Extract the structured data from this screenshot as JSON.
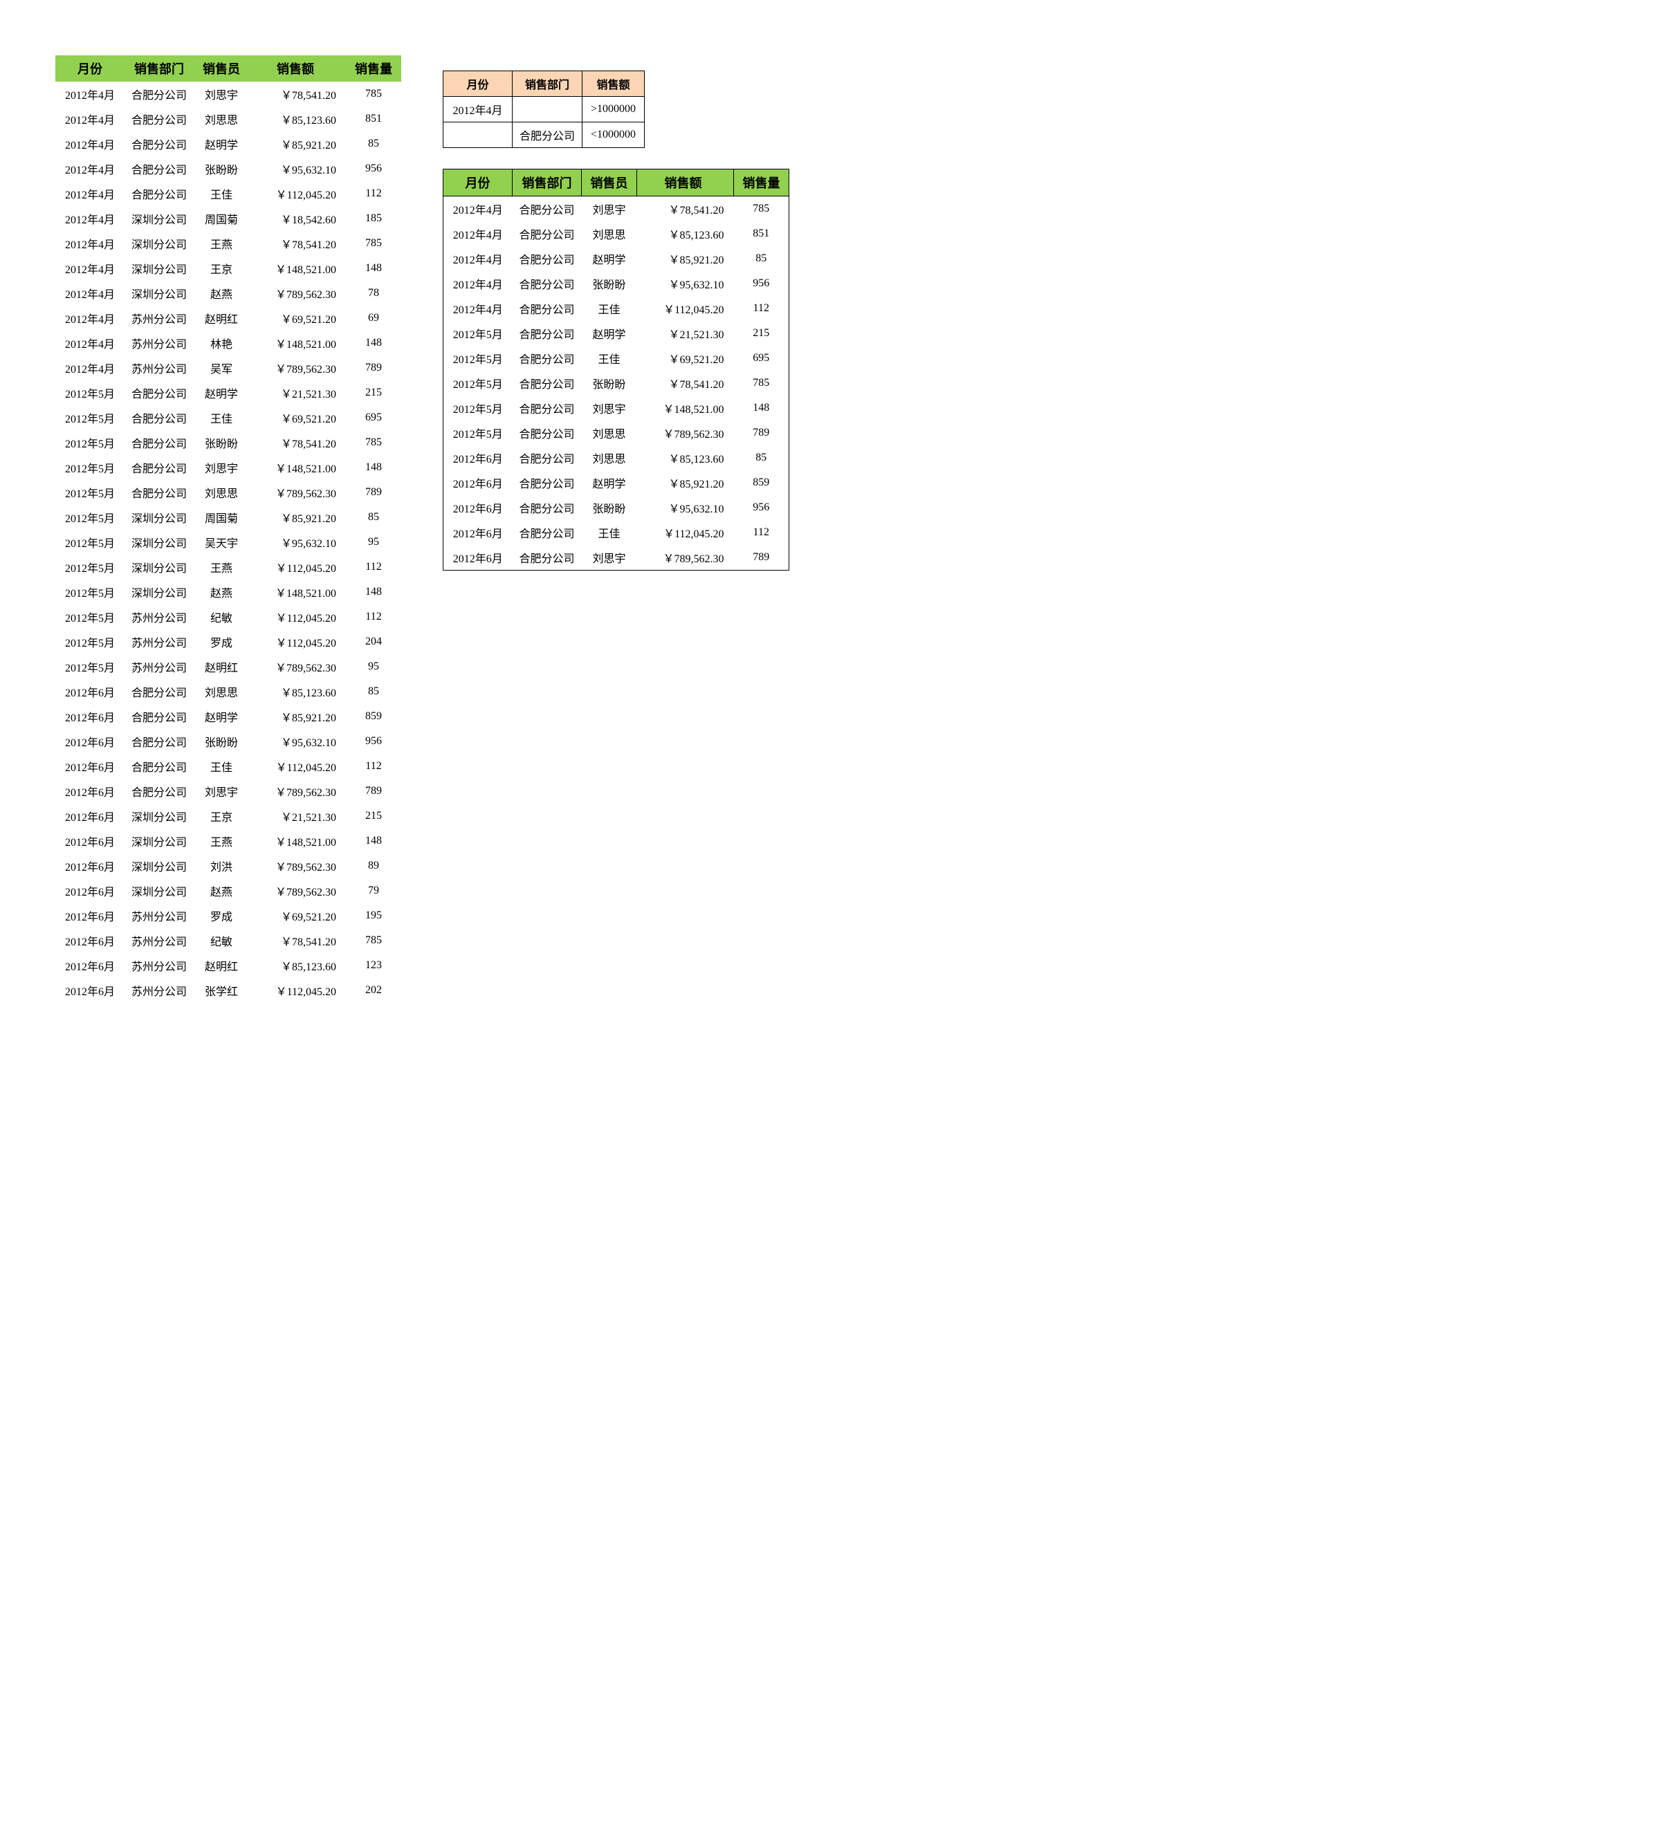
{
  "colors": {
    "header_green": "#92d050",
    "header_peach": "#fcd5b4",
    "border": "#000000",
    "bg": "#ffffff",
    "text": "#000000"
  },
  "main_table": {
    "headers": [
      "月份",
      "销售部门",
      "销售员",
      "销售额",
      "销售量"
    ],
    "rows": [
      [
        "2012年4月",
        "合肥分公司",
        "刘思宇",
        "￥78,541.20",
        "785"
      ],
      [
        "2012年4月",
        "合肥分公司",
        "刘思思",
        "￥85,123.60",
        "851"
      ],
      [
        "2012年4月",
        "合肥分公司",
        "赵明学",
        "￥85,921.20",
        "85"
      ],
      [
        "2012年4月",
        "合肥分公司",
        "张盼盼",
        "￥95,632.10",
        "956"
      ],
      [
        "2012年4月",
        "合肥分公司",
        "王佳",
        "￥112,045.20",
        "112"
      ],
      [
        "2012年4月",
        "深圳分公司",
        "周国菊",
        "￥18,542.60",
        "185"
      ],
      [
        "2012年4月",
        "深圳分公司",
        "王燕",
        "￥78,541.20",
        "785"
      ],
      [
        "2012年4月",
        "深圳分公司",
        "王京",
        "￥148,521.00",
        "148"
      ],
      [
        "2012年4月",
        "深圳分公司",
        "赵燕",
        "￥789,562.30",
        "78"
      ],
      [
        "2012年4月",
        "苏州分公司",
        "赵明红",
        "￥69,521.20",
        "69"
      ],
      [
        "2012年4月",
        "苏州分公司",
        "林艳",
        "￥148,521.00",
        "148"
      ],
      [
        "2012年4月",
        "苏州分公司",
        "吴军",
        "￥789,562.30",
        "789"
      ],
      [
        "2012年5月",
        "合肥分公司",
        "赵明学",
        "￥21,521.30",
        "215"
      ],
      [
        "2012年5月",
        "合肥分公司",
        "王佳",
        "￥69,521.20",
        "695"
      ],
      [
        "2012年5月",
        "合肥分公司",
        "张盼盼",
        "￥78,541.20",
        "785"
      ],
      [
        "2012年5月",
        "合肥分公司",
        "刘思宇",
        "￥148,521.00",
        "148"
      ],
      [
        "2012年5月",
        "合肥分公司",
        "刘思思",
        "￥789,562.30",
        "789"
      ],
      [
        "2012年5月",
        "深圳分公司",
        "周国菊",
        "￥85,921.20",
        "85"
      ],
      [
        "2012年5月",
        "深圳分公司",
        "吴天宇",
        "￥95,632.10",
        "95"
      ],
      [
        "2012年5月",
        "深圳分公司",
        "王燕",
        "￥112,045.20",
        "112"
      ],
      [
        "2012年5月",
        "深圳分公司",
        "赵燕",
        "￥148,521.00",
        "148"
      ],
      [
        "2012年5月",
        "苏州分公司",
        "纪敏",
        "￥112,045.20",
        "112"
      ],
      [
        "2012年5月",
        "苏州分公司",
        "罗成",
        "￥112,045.20",
        "204"
      ],
      [
        "2012年5月",
        "苏州分公司",
        "赵明红",
        "￥789,562.30",
        "95"
      ],
      [
        "2012年6月",
        "合肥分公司",
        "刘思思",
        "￥85,123.60",
        "85"
      ],
      [
        "2012年6月",
        "合肥分公司",
        "赵明学",
        "￥85,921.20",
        "859"
      ],
      [
        "2012年6月",
        "合肥分公司",
        "张盼盼",
        "￥95,632.10",
        "956"
      ],
      [
        "2012年6月",
        "合肥分公司",
        "王佳",
        "￥112,045.20",
        "112"
      ],
      [
        "2012年6月",
        "合肥分公司",
        "刘思宇",
        "￥789,562.30",
        "789"
      ],
      [
        "2012年6月",
        "深圳分公司",
        "王京",
        "￥21,521.30",
        "215"
      ],
      [
        "2012年6月",
        "深圳分公司",
        "王燕",
        "￥148,521.00",
        "148"
      ],
      [
        "2012年6月",
        "深圳分公司",
        "刘洪",
        "￥789,562.30",
        "89"
      ],
      [
        "2012年6月",
        "深圳分公司",
        "赵燕",
        "￥789,562.30",
        "79"
      ],
      [
        "2012年6月",
        "苏州分公司",
        "罗成",
        "￥69,521.20",
        "195"
      ],
      [
        "2012年6月",
        "苏州分公司",
        "纪敏",
        "￥78,541.20",
        "785"
      ],
      [
        "2012年6月",
        "苏州分公司",
        "赵明红",
        "￥85,123.60",
        "123"
      ],
      [
        "2012年6月",
        "苏州分公司",
        "张学红",
        "￥112,045.20",
        "202"
      ]
    ]
  },
  "filter_table": {
    "headers": [
      "月份",
      "销售部门",
      "销售额"
    ],
    "rows": [
      [
        "2012年4月",
        "",
        ">1000000"
      ],
      [
        "",
        "合肥分公司",
        "<1000000"
      ]
    ]
  },
  "result_table": {
    "headers": [
      "月份",
      "销售部门",
      "销售员",
      "销售额",
      "销售量"
    ],
    "rows": [
      [
        "2012年4月",
        "合肥分公司",
        "刘思宇",
        "￥78,541.20",
        "785"
      ],
      [
        "2012年4月",
        "合肥分公司",
        "刘思思",
        "￥85,123.60",
        "851"
      ],
      [
        "2012年4月",
        "合肥分公司",
        "赵明学",
        "￥85,921.20",
        "85"
      ],
      [
        "2012年4月",
        "合肥分公司",
        "张盼盼",
        "￥95,632.10",
        "956"
      ],
      [
        "2012年4月",
        "合肥分公司",
        "王佳",
        "￥112,045.20",
        "112"
      ],
      [
        "2012年5月",
        "合肥分公司",
        "赵明学",
        "￥21,521.30",
        "215"
      ],
      [
        "2012年5月",
        "合肥分公司",
        "王佳",
        "￥69,521.20",
        "695"
      ],
      [
        "2012年5月",
        "合肥分公司",
        "张盼盼",
        "￥78,541.20",
        "785"
      ],
      [
        "2012年5月",
        "合肥分公司",
        "刘思宇",
        "￥148,521.00",
        "148"
      ],
      [
        "2012年5月",
        "合肥分公司",
        "刘思思",
        "￥789,562.30",
        "789"
      ],
      [
        "2012年6月",
        "合肥分公司",
        "刘思思",
        "￥85,123.60",
        "85"
      ],
      [
        "2012年6月",
        "合肥分公司",
        "赵明学",
        "￥85,921.20",
        "859"
      ],
      [
        "2012年6月",
        "合肥分公司",
        "张盼盼",
        "￥95,632.10",
        "956"
      ],
      [
        "2012年6月",
        "合肥分公司",
        "王佳",
        "￥112,045.20",
        "112"
      ],
      [
        "2012年6月",
        "合肥分公司",
        "刘思宇",
        "￥789,562.30",
        "789"
      ]
    ]
  }
}
